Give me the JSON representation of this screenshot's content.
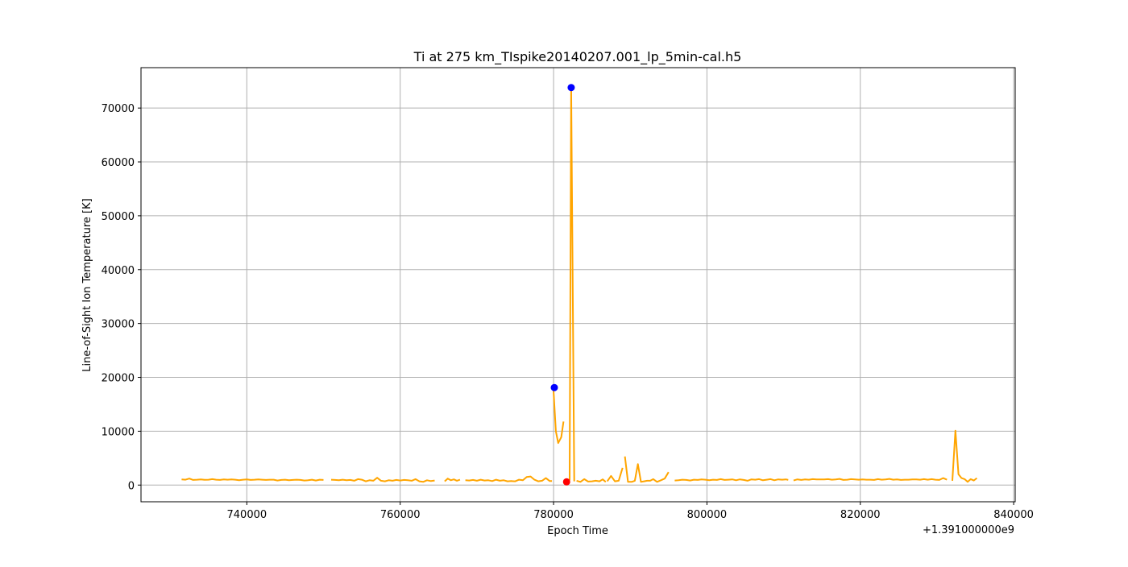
{
  "chart_data": {
    "type": "line",
    "title": "Ti at 275 km_TIspike20140207.001_lp_5min-cal.h5",
    "xlabel": "Epoch Time",
    "ylabel": "Line-of-Sight Ion Temperature [K]",
    "x_offset_label": "+1.391000000e9",
    "xlim": [
      726200,
      840200
    ],
    "ylim": [
      -3100,
      77500
    ],
    "xticks": [
      740000,
      760000,
      780000,
      800000,
      820000,
      840000
    ],
    "xtick_labels": [
      "740000",
      "760000",
      "780000",
      "800000",
      "820000",
      "840000"
    ],
    "yticks": [
      0,
      10000,
      20000,
      30000,
      40000,
      50000,
      60000,
      70000
    ],
    "ytick_labels": [
      "0",
      "10000",
      "20000",
      "30000",
      "40000",
      "50000",
      "60000",
      "70000"
    ],
    "grid": true,
    "colors": {
      "line": "#ffa500",
      "peak_marker": "#0000ff",
      "min_marker": "#ff0000",
      "grid": "#b0b0b0"
    },
    "series": [
      {
        "segments": [
          [
            [
              731500,
              1050
            ],
            [
              732000,
              1000
            ],
            [
              732500,
              1200
            ],
            [
              733000,
              950
            ],
            [
              733500,
              1000
            ],
            [
              734000,
              1050
            ],
            [
              734500,
              980
            ],
            [
              735000,
              1000
            ],
            [
              735500,
              1100
            ],
            [
              736000,
              1000
            ],
            [
              736500,
              950
            ],
            [
              737000,
              1050
            ],
            [
              737500,
              1000
            ],
            [
              738000,
              1050
            ],
            [
              738500,
              1000
            ],
            [
              739000,
              900
            ],
            [
              739500,
              1000
            ],
            [
              740000,
              1050
            ],
            [
              740500,
              950
            ],
            [
              741000,
              1000
            ],
            [
              741500,
              1050
            ],
            [
              742000,
              1000
            ],
            [
              742500,
              950
            ],
            [
              743000,
              1000
            ],
            [
              743500,
              1000
            ],
            [
              744000,
              850
            ],
            [
              744500,
              950
            ],
            [
              745000,
              1000
            ],
            [
              745500,
              900
            ],
            [
              746000,
              950
            ],
            [
              746500,
              1000
            ],
            [
              747000,
              950
            ],
            [
              747500,
              850
            ],
            [
              748000,
              900
            ],
            [
              748500,
              1000
            ],
            [
              749000,
              850
            ],
            [
              749500,
              1000
            ],
            [
              750000,
              950
            ]
          ],
          [
            [
              751000,
              1000
            ],
            [
              751500,
              950
            ],
            [
              752000,
              900
            ],
            [
              752500,
              1000
            ],
            [
              753000,
              900
            ],
            [
              753500,
              950
            ],
            [
              754000,
              800
            ],
            [
              754500,
              1100
            ],
            [
              755000,
              1000
            ],
            [
              755500,
              700
            ],
            [
              756000,
              900
            ],
            [
              756500,
              800
            ],
            [
              757000,
              1350
            ],
            [
              757500,
              800
            ],
            [
              758000,
              700
            ],
            [
              758500,
              900
            ],
            [
              759000,
              800
            ],
            [
              759500,
              950
            ],
            [
              760000,
              850
            ],
            [
              760500,
              950
            ],
            [
              761000,
              900
            ],
            [
              761500,
              800
            ],
            [
              762000,
              1100
            ],
            [
              762500,
              700
            ],
            [
              763000,
              600
            ],
            [
              763500,
              900
            ],
            [
              764000,
              750
            ],
            [
              764500,
              850
            ]
          ],
          [
            [
              765800,
              700
            ],
            [
              766200,
              1200
            ],
            [
              766600,
              900
            ],
            [
              767000,
              1050
            ],
            [
              767400,
              800
            ],
            [
              767800,
              1000
            ]
          ],
          [
            [
              768500,
              900
            ],
            [
              769000,
              850
            ],
            [
              769500,
              950
            ],
            [
              770000,
              800
            ],
            [
              770500,
              1000
            ],
            [
              771000,
              850
            ],
            [
              771500,
              900
            ],
            [
              772000,
              750
            ],
            [
              772500,
              1000
            ],
            [
              773000,
              800
            ],
            [
              773500,
              900
            ],
            [
              774000,
              700
            ],
            [
              774500,
              750
            ],
            [
              775000,
              700
            ],
            [
              775500,
              1000
            ],
            [
              776000,
              900
            ],
            [
              776500,
              1500
            ],
            [
              777000,
              1600
            ],
            [
              777500,
              1000
            ],
            [
              778000,
              700
            ],
            [
              778500,
              800
            ],
            [
              779000,
              1300
            ],
            [
              779500,
              750
            ],
            [
              779800,
              750
            ]
          ],
          [
            [
              780000,
              17500
            ],
            [
              780300,
              10000
            ],
            [
              780600,
              7800
            ],
            [
              781000,
              8900
            ],
            [
              781300,
              11800
            ]
          ],
          [
            [
              781800,
              700
            ],
            [
              782100,
              1000
            ],
            [
              782300,
              73800
            ],
            [
              782700,
              700
            ]
          ],
          [
            [
              783000,
              800
            ],
            [
              783500,
              600
            ],
            [
              784000,
              1100
            ],
            [
              784500,
              650
            ],
            [
              785000,
              700
            ],
            [
              785500,
              800
            ],
            [
              786000,
              700
            ],
            [
              786400,
              1050
            ],
            [
              786800,
              600
            ]
          ],
          [
            [
              787000,
              700
            ],
            [
              787500,
              1700
            ],
            [
              788000,
              700
            ],
            [
              788500,
              800
            ],
            [
              789000,
              3200
            ]
          ],
          [
            [
              789300,
              5300
            ],
            [
              789700,
              600
            ],
            [
              790200,
              600
            ],
            [
              790600,
              800
            ],
            [
              791000,
              3900
            ],
            [
              791400,
              600
            ],
            [
              791800,
              700
            ],
            [
              792200,
              800
            ],
            [
              792600,
              800
            ],
            [
              793000,
              1100
            ],
            [
              793500,
              600
            ],
            [
              794000,
              900
            ],
            [
              794500,
              1200
            ],
            [
              795000,
              2400
            ]
          ],
          [
            [
              795800,
              850
            ],
            [
              796300,
              900
            ],
            [
              796800,
              1000
            ],
            [
              797300,
              950
            ],
            [
              797800,
              850
            ],
            [
              798300,
              1000
            ],
            [
              798800,
              950
            ],
            [
              799300,
              1050
            ],
            [
              799800,
              1000
            ],
            [
              800300,
              900
            ],
            [
              800800,
              1000
            ],
            [
              801300,
              950
            ],
            [
              801800,
              1100
            ],
            [
              802300,
              950
            ],
            [
              802800,
              1000
            ],
            [
              803300,
              1050
            ],
            [
              803800,
              900
            ],
            [
              804300,
              1050
            ],
            [
              804800,
              950
            ],
            [
              805300,
              800
            ],
            [
              805800,
              1050
            ],
            [
              806300,
              1000
            ],
            [
              806800,
              1100
            ],
            [
              807300,
              900
            ],
            [
              807800,
              1000
            ],
            [
              808300,
              1100
            ],
            [
              808800,
              900
            ],
            [
              809300,
              1050
            ],
            [
              809800,
              1000
            ],
            [
              810300,
              1050
            ],
            [
              810600,
              950
            ]
          ],
          [
            [
              811300,
              850
            ],
            [
              811800,
              1050
            ],
            [
              812300,
              950
            ],
            [
              812800,
              1050
            ],
            [
              813300,
              1000
            ],
            [
              813800,
              1100
            ],
            [
              814300,
              1050
            ],
            [
              814800,
              1050
            ],
            [
              815300,
              1050
            ],
            [
              815800,
              1100
            ],
            [
              816300,
              1000
            ],
            [
              816800,
              1050
            ],
            [
              817300,
              1150
            ],
            [
              817800,
              950
            ],
            [
              818300,
              1000
            ],
            [
              818800,
              1100
            ],
            [
              819300,
              1050
            ],
            [
              819800,
              1000
            ],
            [
              820300,
              1050
            ],
            [
              820800,
              1000
            ],
            [
              821300,
              1000
            ],
            [
              821800,
              950
            ],
            [
              822300,
              1100
            ],
            [
              822800,
              1000
            ],
            [
              823300,
              1050
            ],
            [
              823800,
              1150
            ],
            [
              824300,
              1000
            ],
            [
              824800,
              1050
            ],
            [
              825300,
              950
            ],
            [
              825800,
              1000
            ],
            [
              826300,
              1000
            ],
            [
              826800,
              1050
            ],
            [
              827300,
              1050
            ],
            [
              827800,
              1000
            ],
            [
              828300,
              1100
            ],
            [
              828800,
              1000
            ],
            [
              829300,
              1100
            ],
            [
              829800,
              1000
            ],
            [
              830300,
              950
            ],
            [
              830800,
              1300
            ],
            [
              831300,
              1000
            ]
          ],
          [
            [
              832000,
              800
            ],
            [
              832400,
              10100
            ],
            [
              832800,
              2000
            ],
            [
              833200,
              1300
            ],
            [
              833600,
              1100
            ],
            [
              834000,
              600
            ],
            [
              834400,
              1100
            ],
            [
              834800,
              850
            ],
            [
              835200,
              1300
            ]
          ]
        ]
      }
    ],
    "markers": [
      {
        "kind": "peak",
        "x": 780100,
        "y": 18100
      },
      {
        "kind": "peak",
        "x": 782300,
        "y": 73800
      },
      {
        "kind": "min",
        "x": 781700,
        "y": 600
      }
    ]
  }
}
